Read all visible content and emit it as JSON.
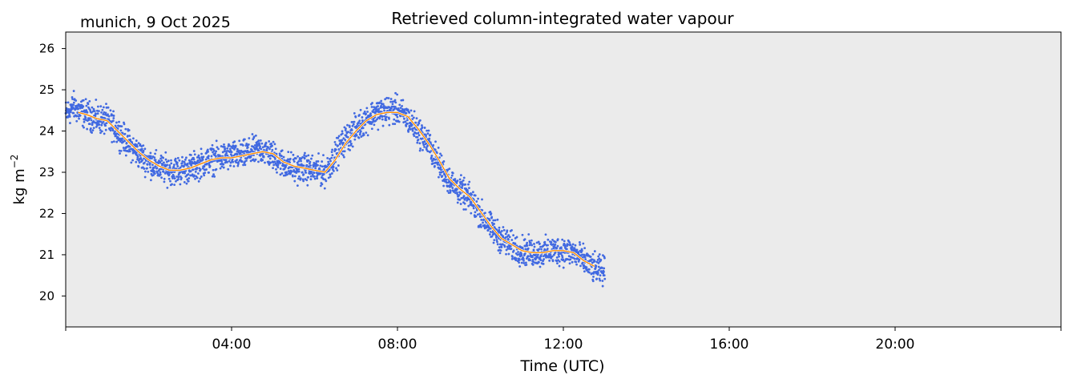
{
  "location_label": "munich, 9 Oct 2025",
  "chart_data": {
    "type": "scatter",
    "title": "Retrieved column-integrated water vapour",
    "xlabel": "Time (UTC)",
    "ylabel_main": "kg m",
    "ylabel_sup": "−2",
    "xlim": [
      0,
      24
    ],
    "ylim": [
      19.25,
      26.4
    ],
    "x_ticks": [
      0,
      4,
      8,
      12,
      16,
      20,
      24
    ],
    "x_tick_labels": [
      "",
      "04:00",
      "08:00",
      "12:00",
      "16:00",
      "20:00",
      ""
    ],
    "y_ticks": [
      20,
      21,
      22,
      23,
      24,
      25,
      26
    ],
    "y_tick_labels": [
      "20",
      "21",
      "22",
      "23",
      "24",
      "25",
      "26"
    ],
    "grid": false,
    "background": "#ebebeb",
    "series": [
      {
        "kind": "scatter",
        "color": "#4169e1",
        "x": [
          0.0,
          0.2,
          0.3,
          0.5,
          0.75,
          1.0,
          1.25,
          1.5,
          1.75,
          2.0,
          2.25,
          2.5,
          2.75,
          3.0,
          3.25,
          3.5,
          3.75,
          4.0,
          4.25,
          4.5,
          4.75,
          5.0,
          5.25,
          5.5,
          5.75,
          6.0,
          6.25,
          6.5,
          6.75,
          7.0,
          7.25,
          7.5,
          7.75,
          8.0,
          8.25,
          8.5,
          8.75,
          9.0,
          9.25,
          9.5,
          9.75,
          10.0,
          10.25,
          10.5,
          10.75,
          11.0,
          11.25,
          11.5,
          11.75,
          12.0,
          12.25,
          12.5,
          12.75,
          13.0
        ],
        "y": [
          24.4,
          24.6,
          24.5,
          24.4,
          24.3,
          24.25,
          24.0,
          23.7,
          23.45,
          23.25,
          23.1,
          23.05,
          23.05,
          23.1,
          23.2,
          23.3,
          23.35,
          23.4,
          23.4,
          23.5,
          23.55,
          23.4,
          23.2,
          23.1,
          23.1,
          23.05,
          23.0,
          23.4,
          23.8,
          24.05,
          24.3,
          24.45,
          24.5,
          24.5,
          24.3,
          24.0,
          23.7,
          23.2,
          22.8,
          22.55,
          22.35,
          22.0,
          21.65,
          21.4,
          21.2,
          21.1,
          21.05,
          21.05,
          21.1,
          21.1,
          21.05,
          20.85,
          20.65,
          20.6
        ],
        "spread": 0.28
      },
      {
        "kind": "line",
        "color": "#ff8c00",
        "x": [
          0.3,
          0.5,
          0.75,
          1.0,
          1.25,
          1.5,
          1.75,
          2.0,
          2.25,
          2.5,
          2.75,
          3.0,
          3.25,
          3.5,
          3.75,
          4.0,
          4.25,
          4.5,
          4.75,
          5.0,
          5.25,
          5.5,
          5.75,
          6.0,
          6.25,
          6.5,
          6.75,
          7.0,
          7.25,
          7.5,
          7.75,
          8.0,
          8.25,
          8.5,
          8.75,
          9.0,
          9.25,
          9.5,
          9.75,
          10.0,
          10.25,
          10.5,
          10.75,
          11.0,
          11.25,
          11.5,
          11.75,
          12.0,
          12.25,
          12.5,
          12.75
        ],
        "y": [
          24.45,
          24.4,
          24.3,
          24.25,
          24.0,
          23.75,
          23.5,
          23.3,
          23.15,
          23.05,
          23.05,
          23.1,
          23.2,
          23.3,
          23.35,
          23.35,
          23.4,
          23.45,
          23.5,
          23.45,
          23.25,
          23.15,
          23.1,
          23.05,
          23.0,
          23.3,
          23.7,
          24.0,
          24.25,
          24.4,
          24.45,
          24.45,
          24.35,
          24.05,
          23.7,
          23.3,
          22.85,
          22.6,
          22.4,
          22.05,
          21.7,
          21.4,
          21.25,
          21.1,
          21.05,
          21.05,
          21.1,
          21.1,
          21.05,
          20.85,
          20.72
        ]
      }
    ]
  }
}
